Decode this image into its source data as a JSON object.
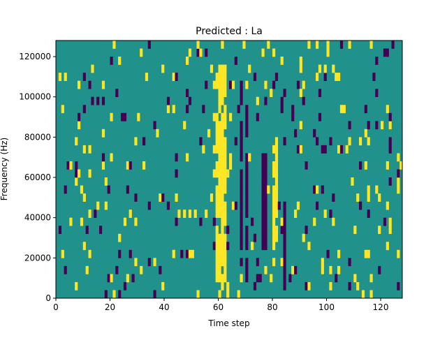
{
  "chart_data": {
    "type": "heatmap",
    "title": "Predicted : La",
    "xlabel": "Time step",
    "ylabel": "Frequency (Hz)",
    "xlim": [
      0,
      128
    ],
    "ylim": [
      0,
      128000
    ],
    "x_ticks": [
      0,
      20,
      40,
      60,
      80,
      100,
      120
    ],
    "y_ticks": [
      0,
      20000,
      40000,
      60000,
      80000,
      100000,
      120000
    ],
    "x_tick_labels": [
      "0",
      "20",
      "40",
      "60",
      "80",
      "100",
      "120"
    ],
    "y_tick_labels": [
      "0",
      "20000",
      "40000",
      "60000",
      "80000",
      "100000",
      "120000"
    ],
    "value_levels": [
      -1,
      0,
      1
    ],
    "colormap": "viridis",
    "colors": {
      "low": "#440154",
      "mid": "#21918c",
      "high": "#fde725"
    },
    "grid": false,
    "cells_per_axis": [
      128,
      32
    ],
    "column_highlights": [
      {
        "x_range": [
          59,
          63
        ],
        "y_range": [
          8000,
          116000
        ],
        "value": 1
      },
      {
        "x_range": [
          68,
          69
        ],
        "y_range": [
          20000,
          108000
        ],
        "value": -1
      },
      {
        "x_range": [
          70,
          71
        ],
        "y_range": [
          4000,
          96000
        ],
        "value": -1
      },
      {
        "x_range": [
          76,
          78
        ],
        "y_range": [
          24000,
          72000
        ],
        "value": -1
      },
      {
        "x_range": [
          80,
          82
        ],
        "y_range": [
          24000,
          80000
        ],
        "value": 1
      },
      {
        "x_range": [
          84,
          85
        ],
        "y_range": [
          0,
          48000
        ],
        "value": -1
      }
    ]
  }
}
